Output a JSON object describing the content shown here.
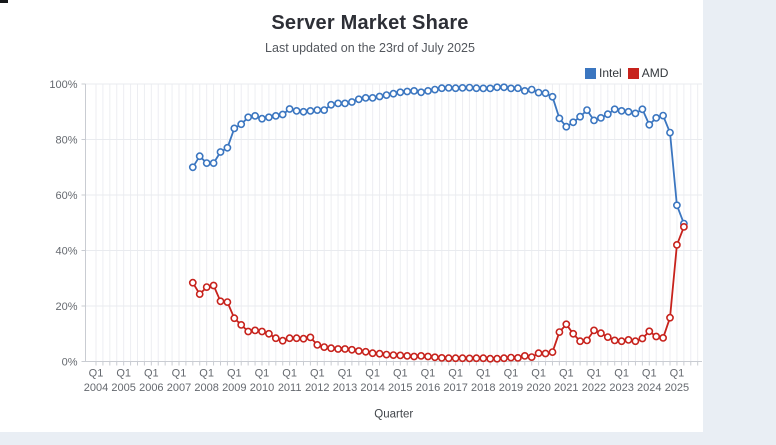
{
  "header": {
    "title": "Server Market Share",
    "subtitle": "Last updated on the 23rd of July 2025"
  },
  "legend": [
    {
      "label": "Intel",
      "color": "#3b76c0"
    },
    {
      "label": "AMD",
      "color": "#c7221c"
    }
  ],
  "chart_data": {
    "type": "line",
    "title": "Server Market Share",
    "xlabel": "Quarter",
    "ylabel": "",
    "ylim": [
      0,
      100
    ],
    "grid": true,
    "legend_position": "top-right",
    "y_ticks": [
      "0%",
      "20%",
      "40%",
      "60%",
      "80%",
      "100%"
    ],
    "x_ticks": [
      "Q1 2004",
      "Q1 2005",
      "Q1 2006",
      "Q1 2007",
      "Q1 2008",
      "Q1 2009",
      "Q1 2010",
      "Q1 2011",
      "Q1 2012",
      "Q1 2013",
      "Q1 2014",
      "Q1 2015",
      "Q1 2016",
      "Q1 2017",
      "Q1 2018",
      "Q1 2019",
      "Q1 2020",
      "Q1 2021",
      "Q1 2022",
      "Q1 2023",
      "Q1 2024",
      "Q1 2025"
    ],
    "categories": [
      "Q3 2007",
      "Q4 2007",
      "Q1 2008",
      "Q2 2008",
      "Q3 2008",
      "Q4 2008",
      "Q1 2009",
      "Q2 2009",
      "Q3 2009",
      "Q4 2009",
      "Q1 2010",
      "Q2 2010",
      "Q3 2010",
      "Q4 2010",
      "Q1 2011",
      "Q2 2011",
      "Q3 2011",
      "Q4 2011",
      "Q1 2012",
      "Q2 2012",
      "Q3 2012",
      "Q4 2012",
      "Q1 2013",
      "Q2 2013",
      "Q3 2013",
      "Q4 2013",
      "Q1 2014",
      "Q2 2014",
      "Q3 2014",
      "Q4 2014",
      "Q1 2015",
      "Q2 2015",
      "Q3 2015",
      "Q4 2015",
      "Q1 2016",
      "Q2 2016",
      "Q3 2016",
      "Q4 2016",
      "Q1 2017",
      "Q2 2017",
      "Q3 2017",
      "Q4 2017",
      "Q1 2018",
      "Q2 2018",
      "Q3 2018",
      "Q4 2018",
      "Q1 2019",
      "Q2 2019",
      "Q3 2019",
      "Q4 2019",
      "Q1 2020",
      "Q2 2020",
      "Q3 2020",
      "Q4 2020",
      "Q1 2021",
      "Q2 2021",
      "Q3 2021",
      "Q4 2021",
      "Q1 2022",
      "Q2 2022",
      "Q3 2022",
      "Q4 2022",
      "Q1 2023",
      "Q2 2023",
      "Q3 2023",
      "Q4 2023",
      "Q1 2024",
      "Q2 2024",
      "Q3 2024",
      "Q4 2024",
      "Q1 2025",
      "Q2 2025"
    ],
    "series": [
      {
        "name": "Intel",
        "color": "#3b76c0",
        "values": [
          70,
          74,
          71.5,
          71.5,
          75.5,
          77,
          84,
          85.5,
          88,
          88.5,
          87.5,
          88,
          88.5,
          89,
          91,
          90.3,
          90,
          90.3,
          90.6,
          90.6,
          92.5,
          93,
          93,
          93.5,
          94.5,
          95,
          95,
          95.5,
          96,
          96.5,
          97,
          97.3,
          97.5,
          97,
          97.5,
          98,
          98.5,
          98.6,
          98.5,
          98.6,
          98.7,
          98.5,
          98.4,
          98.4,
          98.8,
          98.8,
          98.4,
          98.5,
          97.5,
          98,
          96.9,
          96.7,
          95.4,
          87.6,
          84.6,
          86.2,
          88.2,
          90.6,
          86.9,
          87.8,
          89.1,
          90.9,
          90.3,
          90,
          89.4,
          90.9,
          85.3,
          87.8,
          88.6,
          82.5,
          56.3,
          49.7
        ]
      },
      {
        "name": "AMD",
        "color": "#c7221c",
        "values": [
          28.4,
          24.3,
          26.8,
          27.4,
          21.7,
          21.4,
          15.6,
          13.2,
          10.8,
          11.2,
          10.8,
          10,
          8.4,
          7.5,
          8.4,
          8.4,
          8.2,
          8.7,
          6,
          5.2,
          4.8,
          4.5,
          4.5,
          4.2,
          3.8,
          3.5,
          3,
          2.8,
          2.5,
          2.3,
          2.2,
          2,
          1.8,
          2,
          1.8,
          1.5,
          1.3,
          1.2,
          1.2,
          1.2,
          1.1,
          1.2,
          1.2,
          1,
          1,
          1.2,
          1.4,
          1.3,
          2,
          1.6,
          3,
          2.9,
          3.4,
          10.6,
          13.4,
          10,
          7.3,
          7.6,
          11.2,
          10.2,
          8.8,
          7.6,
          7.3,
          7.8,
          7.3,
          8.3,
          10.9,
          9,
          8.5,
          15.8,
          42,
          48.5
        ]
      }
    ]
  }
}
